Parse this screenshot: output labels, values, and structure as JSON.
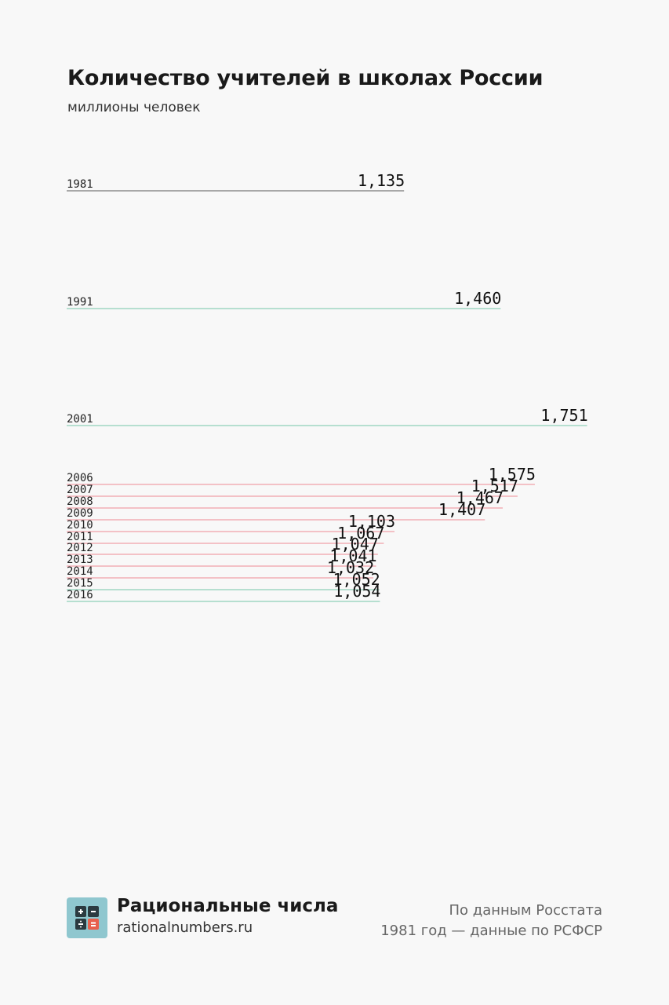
{
  "header": {
    "title": "Количество учителей в школах России",
    "subtitle": "миллионы человек"
  },
  "chart_data": {
    "type": "bar",
    "title": "Количество учителей в школах России",
    "subtitle": "миллионы человек",
    "categories": [
      "1981",
      "1991",
      "2001",
      "2006",
      "2007",
      "2008",
      "2009",
      "2010",
      "2011",
      "2012",
      "2013",
      "2014",
      "2015",
      "2016"
    ],
    "values": [
      1.135,
      1.46,
      1.751,
      1.575,
      1.517,
      1.467,
      1.407,
      1.103,
      1.067,
      1.047,
      1.041,
      1.032,
      1.052,
      1.054
    ],
    "value_labels": [
      "1,135",
      "1,460",
      "1,751",
      "1,575",
      "1,517",
      "1,467",
      "1,407",
      "1,103",
      "1,067",
      "1,047",
      "1,041",
      "1,032",
      "1,052",
      "1,054"
    ],
    "trend": [
      "base",
      "up",
      "up",
      "down",
      "down",
      "down",
      "down",
      "down",
      "down",
      "down",
      "down",
      "down",
      "up",
      "up"
    ],
    "colors": {
      "base": "#777777",
      "up": "#8fd0b8",
      "down": "#f0a0a8"
    }
  },
  "footer": {
    "brand_name": "Рациональные числа",
    "brand_url": "rationalnumbers.ru",
    "source_line1": "По данным Росстата",
    "source_line2": "1981 год — данные по РСФСР",
    "logo_icon": "calculator-icon",
    "logo_colors": {
      "bg": "#8fc7cf",
      "dark": "#2b3a40",
      "accent": "#e8604c"
    }
  }
}
